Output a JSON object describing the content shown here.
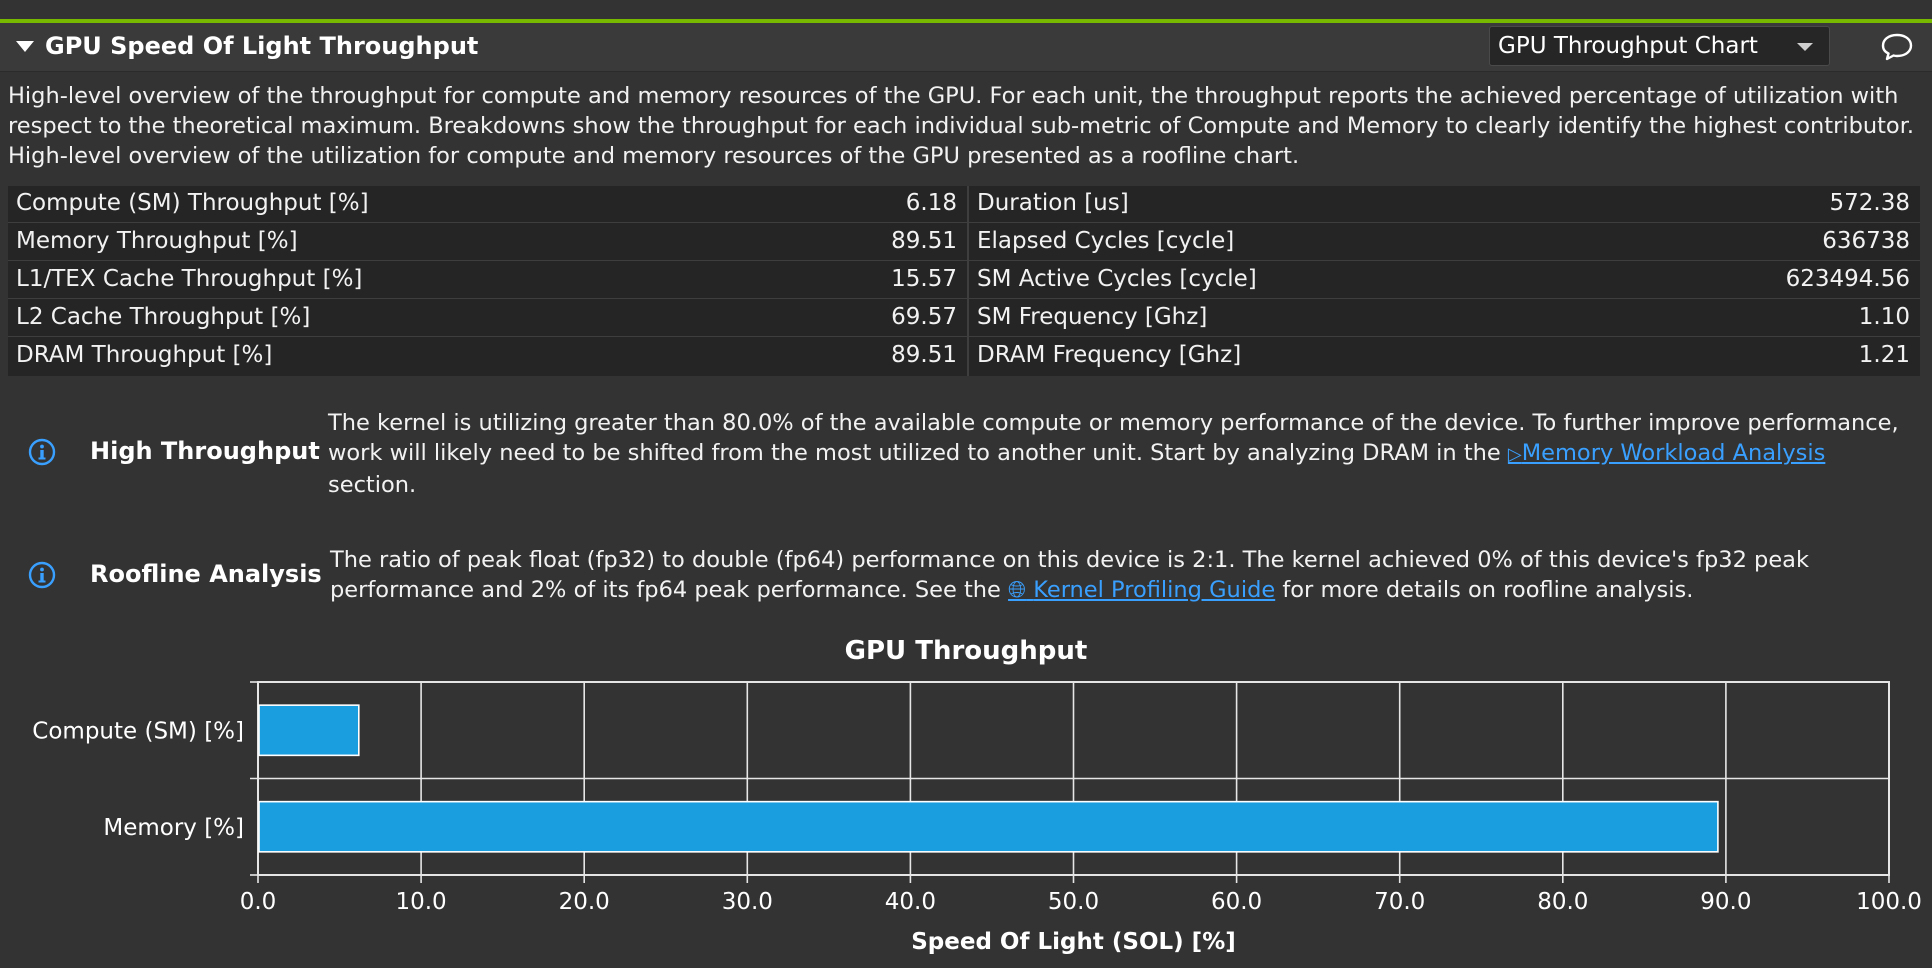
{
  "section": {
    "title": "GPU Speed Of Light Throughput",
    "dropdown_value": "GPU Throughput Chart",
    "description": "High-level overview of the throughput for compute and memory resources of the GPU. For each unit, the throughput reports the achieved percentage of utilization with respect to the theoretical maximum. Breakdowns show the throughput for each individual sub-metric of Compute and Memory to clearly identify the highest contributor. High-level overview of the utilization for compute and memory resources of the GPU presented as a roofline chart."
  },
  "metrics": {
    "left": [
      {
        "label": "Compute (SM) Throughput [%]",
        "value": "6.18"
      },
      {
        "label": "Memory Throughput [%]",
        "value": "89.51"
      },
      {
        "label": "L1/TEX Cache Throughput [%]",
        "value": "15.57"
      },
      {
        "label": "L2 Cache Throughput [%]",
        "value": "69.57"
      },
      {
        "label": "DRAM Throughput [%]",
        "value": "89.51"
      }
    ],
    "right": [
      {
        "label": "Duration [us]",
        "value": "572.38"
      },
      {
        "label": "Elapsed Cycles [cycle]",
        "value": "636738"
      },
      {
        "label": "SM Active Cycles [cycle]",
        "value": "623494.56"
      },
      {
        "label": "SM Frequency [Ghz]",
        "value": "1.10"
      },
      {
        "label": "DRAM Frequency [Ghz]",
        "value": "1.21"
      }
    ]
  },
  "rules": [
    {
      "title": "High Throughput",
      "text_before": "The kernel is utilizing greater than 80.0% of the available compute or memory performance of the device. To further improve performance, work will likely need to be shifted from the most utilized to another unit. Start by analyzing DRAM in the ",
      "link_text": "Memory Workload Analysis",
      "text_after": " section."
    },
    {
      "title": "Roofline Analysis",
      "text_before": "The ratio of peak float (fp32) to double (fp64) performance on this device is 2:1. The kernel achieved 0% of this device's fp32 peak performance and 2% of its fp64 peak performance. See the ",
      "link_text": "Kernel Profiling Guide",
      "text_after": " for more details on roofline analysis."
    }
  ],
  "chart_data": {
    "type": "bar",
    "orientation": "horizontal",
    "title": "GPU Throughput",
    "xlabel": "Speed Of Light (SOL) [%]",
    "ylabel": "",
    "categories": [
      "Compute (SM) [%]",
      "Memory [%]"
    ],
    "values": [
      6.18,
      89.51
    ],
    "xlim": [
      0,
      100
    ],
    "xticks": [
      "0.0",
      "10.0",
      "20.0",
      "30.0",
      "40.0",
      "50.0",
      "60.0",
      "70.0",
      "80.0",
      "90.0",
      "100.0"
    ],
    "grid": true,
    "bar_color": "#1a9ee0"
  },
  "colors": {
    "accent": "#76b900",
    "link": "#3aa0ff",
    "info": "#3aa0ff"
  }
}
